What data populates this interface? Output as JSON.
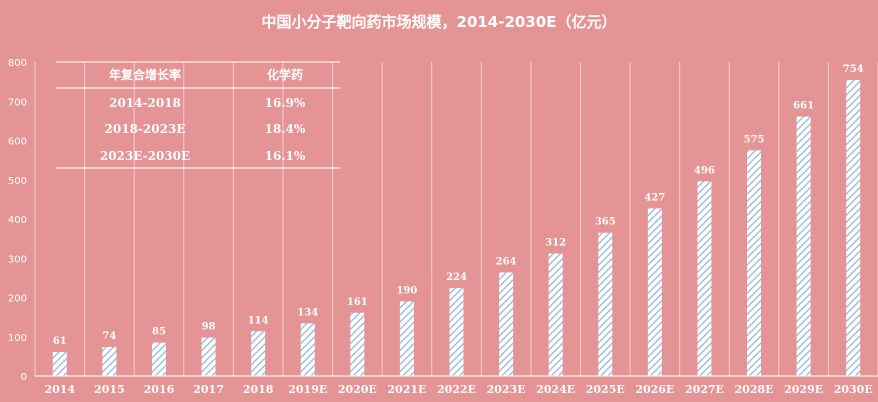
{
  "chart_data": {
    "type": "bar",
    "title": "中国小分子靶向药市场规模，2014-2030E（亿元）",
    "categories": [
      "2014",
      "2015",
      "2016",
      "2017",
      "2018",
      "2019E",
      "2020E",
      "2021E",
      "2022E",
      "2023E",
      "2024E",
      "2025E",
      "2026E",
      "2027E",
      "2028E",
      "2029E",
      "2030E"
    ],
    "values": [
      61,
      74,
      85,
      98,
      114,
      134,
      161,
      190,
      224,
      264,
      312,
      365,
      427,
      496,
      575,
      661,
      754
    ],
    "ylim": [
      0,
      800
    ],
    "yticks": [
      0,
      100,
      200,
      300,
      400,
      500,
      600,
      700,
      800
    ],
    "grid": "vertical",
    "background": "#e59496",
    "bar_fill": "#ffffff",
    "bar_hatch": "#8cb3d6",
    "text_color": "#ffffff",
    "cagr_table": {
      "headers": [
        "年复合增长率",
        "化学药"
      ],
      "rows": [
        [
          "2014-2018",
          "16.9%"
        ],
        [
          "2018-2023E",
          "18.4%"
        ],
        [
          "2023E-2030E",
          "16.1%"
        ]
      ]
    }
  }
}
